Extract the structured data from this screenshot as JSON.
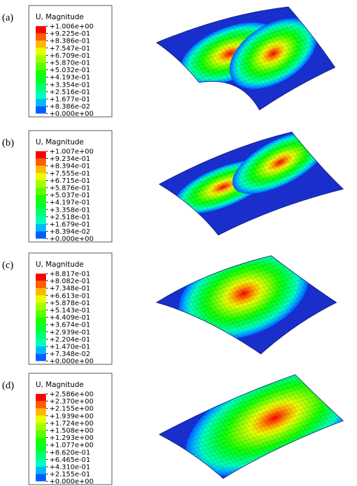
{
  "panels": [
    {
      "label": "(a)",
      "legend": {
        "title": "U, Magnitude",
        "values": [
          "+1.006e+00",
          "+9.225e-01",
          "+8.386e-01",
          "+7.547e-01",
          "+6.709e-01",
          "+5.870e-01",
          "+5.032e-01",
          "+4.193e-01",
          "+3.354e-01",
          "+2.516e-01",
          "+1.677e-01",
          "+8.386e-02",
          "+0.000e+00"
        ]
      }
    },
    {
      "label": "(b)",
      "legend": {
        "title": "U, Magnitude",
        "values": [
          "+1.007e+00",
          "+9.234e-01",
          "+8.394e-01",
          "+7.555e-01",
          "+6.715e-01",
          "+5.876e-01",
          "+5.037e-01",
          "+4.197e-01",
          "+3.358e-01",
          "+2.518e-01",
          "+1.679e-01",
          "+8.394e-02",
          "+0.000e+00"
        ]
      }
    },
    {
      "label": "(c)",
      "legend": {
        "title": "U, Magnitude",
        "values": [
          "+8.817e-01",
          "+8.082e-01",
          "+7.348e-01",
          "+6.613e-01",
          "+5.878e-01",
          "+5.143e-01",
          "+4.409e-01",
          "+3.674e-01",
          "+2.939e-01",
          "+2.204e-01",
          "+1.470e-01",
          "+7.348e-02",
          "+0.000e+00"
        ]
      }
    },
    {
      "label": "(d)",
      "legend": {
        "title": "U, Magnitude",
        "values": [
          "+2.586e+00",
          "+2.370e+00",
          "+2.155e+00",
          "+1.939e+00",
          "+1.724e+00",
          "+1.508e+00",
          "+1.293e+00",
          "+1.077e+00",
          "+8.620e-01",
          "+6.465e-01",
          "+4.310e-01",
          "+2.155e-01",
          "+0.000e+00"
        ]
      }
    }
  ],
  "colors": [
    "#ff0000",
    "#ff5d00",
    "#ffb900",
    "#e8ff00",
    "#a2ff00",
    "#5dff00",
    "#17ff00",
    "#00ff2e",
    "#00ff74",
    "#00ffb9",
    "#00b9ff",
    "#005dff"
  ]
}
